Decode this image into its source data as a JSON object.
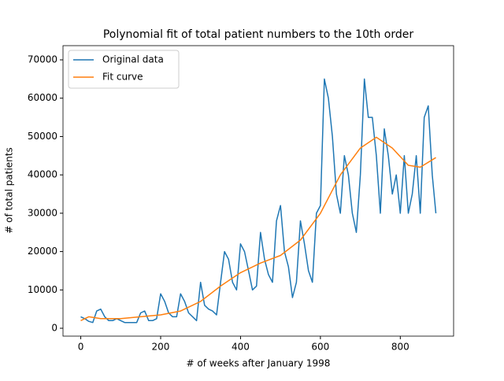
{
  "chart_data": {
    "type": "line",
    "title": "Polynomial fit of total patient numbers to the 10th order",
    "x_label": "# of weeks after January 1998",
    "y_label": "# of total patients",
    "xlim": [
      -44.45,
      933.45
    ],
    "ylim": [
      -2050,
      73700
    ],
    "xticks": [
      0,
      200,
      400,
      600,
      800
    ],
    "yticks": [
      0,
      10000,
      20000,
      30000,
      40000,
      50000,
      60000,
      70000
    ],
    "legend": "upper left",
    "series": [
      {
        "name": "Original data",
        "color": "#1f77b4",
        "x": [
          0,
          10,
          20,
          30,
          40,
          50,
          60,
          70,
          80,
          90,
          100,
          110,
          120,
          130,
          140,
          150,
          160,
          170,
          180,
          190,
          200,
          210,
          220,
          230,
          240,
          250,
          260,
          270,
          280,
          290,
          300,
          310,
          320,
          330,
          340,
          350,
          360,
          370,
          380,
          390,
          400,
          410,
          420,
          430,
          440,
          450,
          460,
          470,
          480,
          490,
          500,
          510,
          520,
          530,
          540,
          550,
          560,
          570,
          580,
          590,
          600,
          610,
          620,
          630,
          640,
          650,
          660,
          670,
          680,
          690,
          700,
          710,
          720,
          730,
          740,
          750,
          760,
          770,
          780,
          790,
          800,
          810,
          820,
          830,
          840,
          850,
          860,
          870,
          880,
          889
        ],
        "values": [
          3000,
          2500,
          1800,
          1500,
          4500,
          5000,
          3000,
          2000,
          2000,
          2500,
          2000,
          1500,
          1500,
          1500,
          1500,
          4000,
          4500,
          2000,
          2000,
          2500,
          9000,
          7000,
          4000,
          3000,
          3000,
          9000,
          7000,
          4000,
          3000,
          2000,
          12000,
          6000,
          5000,
          4500,
          3500,
          12000,
          20000,
          18000,
          12000,
          10000,
          22000,
          20000,
          15000,
          10000,
          11000,
          25000,
          18000,
          14000,
          12000,
          28000,
          32000,
          20000,
          16000,
          8000,
          12000,
          28000,
          22000,
          15000,
          12000,
          30000,
          32000,
          65000,
          60000,
          50000,
          35000,
          30000,
          45000,
          40000,
          30000,
          25000,
          40000,
          65000,
          55000,
          55000,
          45000,
          30000,
          52000,
          45000,
          35000,
          40000,
          30000,
          45000,
          30000,
          35000,
          45000,
          30000,
          55000,
          58000,
          40000,
          30000
        ]
      },
      {
        "name": "Fit curve",
        "color": "#ff7f0e",
        "x": [
          0,
          20,
          50,
          100,
          150,
          200,
          250,
          300,
          350,
          400,
          450,
          500,
          550,
          600,
          650,
          700,
          740,
          780,
          820,
          850,
          889
        ],
        "values": [
          2000,
          3000,
          2500,
          2500,
          3000,
          3500,
          4500,
          7000,
          11000,
          14500,
          17000,
          19000,
          23000,
          30000,
          40000,
          47000,
          49800,
          47000,
          42500,
          42000,
          44500
        ]
      }
    ]
  }
}
